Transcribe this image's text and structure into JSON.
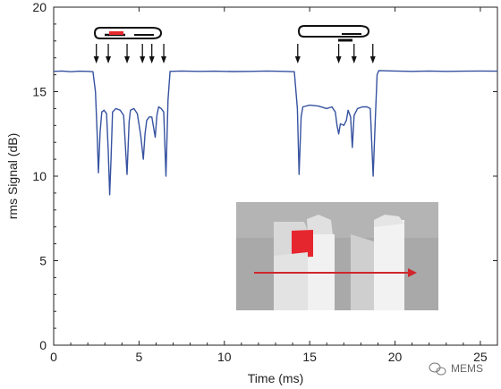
{
  "chart_data": {
    "type": "line",
    "xlabel": "Time (ms)",
    "ylabel": "rms Signal (dB)",
    "xlim": [
      0,
      26
    ],
    "ylim": [
      0,
      20
    ],
    "xticks": [
      0,
      5,
      10,
      15,
      20,
      25
    ],
    "yticks": [
      0,
      5,
      10,
      15,
      20
    ],
    "grid": false,
    "series": [
      {
        "color": "#3652a0",
        "points": [
          [
            0,
            16.2
          ],
          [
            0.5,
            16.22
          ],
          [
            1.0,
            16.18
          ],
          [
            1.5,
            16.21
          ],
          [
            2.0,
            16.2
          ],
          [
            2.3,
            16.18
          ],
          [
            2.45,
            15.0
          ],
          [
            2.55,
            12.5
          ],
          [
            2.62,
            10.2
          ],
          [
            2.72,
            12.6
          ],
          [
            2.82,
            13.8
          ],
          [
            2.95,
            13.9
          ],
          [
            3.1,
            13.7
          ],
          [
            3.2,
            11.5
          ],
          [
            3.28,
            8.9
          ],
          [
            3.36,
            11.0
          ],
          [
            3.45,
            13.8
          ],
          [
            3.65,
            14.0
          ],
          [
            3.9,
            13.9
          ],
          [
            4.1,
            13.6
          ],
          [
            4.3,
            10.1
          ],
          [
            4.42,
            13.2
          ],
          [
            4.5,
            13.9
          ],
          [
            4.7,
            14.0
          ],
          [
            4.9,
            13.7
          ],
          [
            5.1,
            12.4
          ],
          [
            5.25,
            11.0
          ],
          [
            5.35,
            12.5
          ],
          [
            5.45,
            13.3
          ],
          [
            5.6,
            13.5
          ],
          [
            5.75,
            13.5
          ],
          [
            5.95,
            12.3
          ],
          [
            6.05,
            13.6
          ],
          [
            6.15,
            14.1
          ],
          [
            6.3,
            14.0
          ],
          [
            6.45,
            13.8
          ],
          [
            6.58,
            10.0
          ],
          [
            6.7,
            14.5
          ],
          [
            6.82,
            16.2
          ],
          [
            7.5,
            16.22
          ],
          [
            8.5,
            16.2
          ],
          [
            9.5,
            16.21
          ],
          [
            10.5,
            16.19
          ],
          [
            11.5,
            16.2
          ],
          [
            12.5,
            16.22
          ],
          [
            13.5,
            16.2
          ],
          [
            14.1,
            16.18
          ],
          [
            14.28,
            14.0
          ],
          [
            14.38,
            10.1
          ],
          [
            14.5,
            13.5
          ],
          [
            14.6,
            14.1
          ],
          [
            15.0,
            14.2
          ],
          [
            15.5,
            14.15
          ],
          [
            16.0,
            14.0
          ],
          [
            16.3,
            14.1
          ],
          [
            16.5,
            13.8
          ],
          [
            16.6,
            13.0
          ],
          [
            16.7,
            12.5
          ],
          [
            16.8,
            13.1
          ],
          [
            17.0,
            13.0
          ],
          [
            17.15,
            13.3
          ],
          [
            17.25,
            13.9
          ],
          [
            17.4,
            13.5
          ],
          [
            17.5,
            11.7
          ],
          [
            17.6,
            13.6
          ],
          [
            17.8,
            14.0
          ],
          [
            18.1,
            14.1
          ],
          [
            18.35,
            14.1
          ],
          [
            18.55,
            14.0
          ],
          [
            18.72,
            10.0
          ],
          [
            18.85,
            13.5
          ],
          [
            18.95,
            16.0
          ],
          [
            19.05,
            16.25
          ],
          [
            20.0,
            16.22
          ],
          [
            21.0,
            16.2
          ],
          [
            22.0,
            16.22
          ],
          [
            23.0,
            16.2
          ],
          [
            24.0,
            16.21
          ],
          [
            25.0,
            16.22
          ],
          [
            26.0,
            16.21
          ]
        ]
      }
    ],
    "arrows_x_ms": [
      2.5,
      3.2,
      4.3,
      5.2,
      5.75,
      6.45,
      14.3,
      16.7,
      17.6,
      18.7
    ]
  },
  "watermark": {
    "text": "MEMS",
    "icon": "wechat-icon"
  },
  "inset_photo": {
    "arrow_color": "#d0262c",
    "object_color": "#e6262e",
    "background_color": "#a9a9a9"
  },
  "colors": {
    "line": "#3652a0",
    "axis": "#222222"
  }
}
